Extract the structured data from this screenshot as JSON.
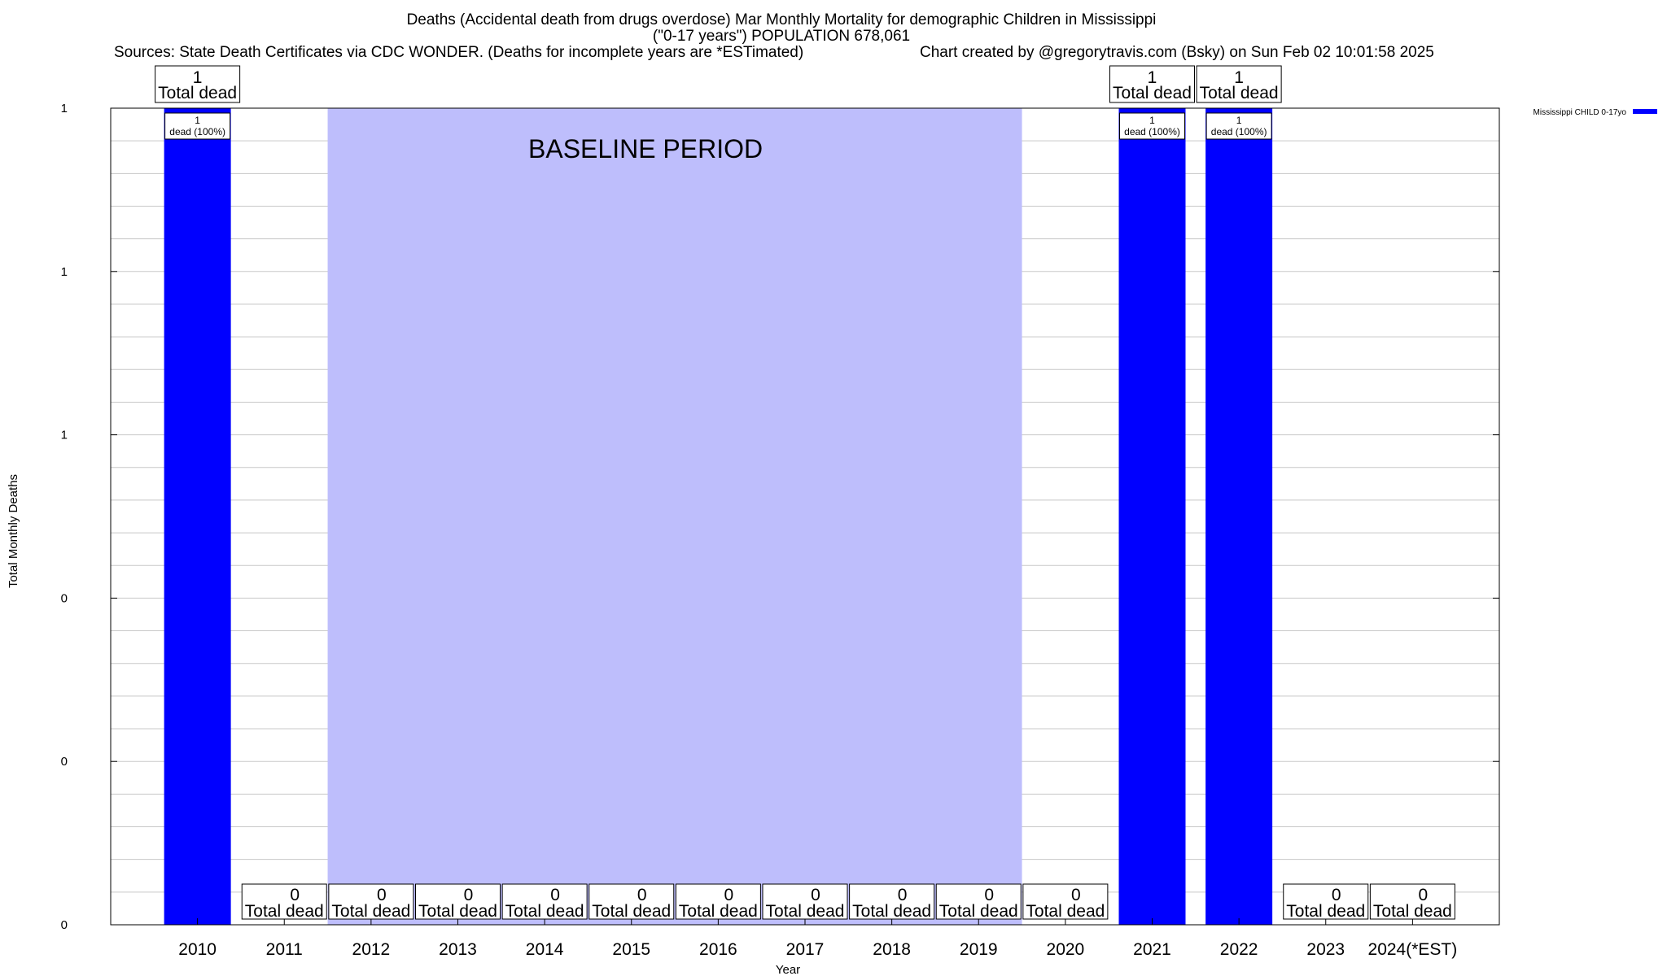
{
  "chart_data": {
    "type": "bar",
    "title_lines": [
      "Deaths (Accidental death from drugs overdose) Mar Monthly Mortality for demographic Children in Mississippi",
      "(\"0-17 years\") POPULATION 678,061"
    ],
    "sources": "Sources: State Death Certificates via CDC WONDER. (Deaths for incomplete years are *ESTimated)",
    "credit": "Chart created by @gregorytravis.com (Bsky) on Sun Feb 02 10:01:58 2025",
    "xlabel": "Year",
    "ylabel": "Total Monthly Deaths",
    "categories": [
      "2010",
      "2011",
      "2012",
      "2013",
      "2014",
      "2015",
      "2016",
      "2017",
      "2018",
      "2019",
      "2020",
      "2021",
      "2022",
      "2023",
      "2024(*EST)"
    ],
    "series": [
      {
        "name": "Mississippi CHILD 0-17yo",
        "color": "#0000ff",
        "values": [
          1,
          0,
          0,
          0,
          0,
          0,
          0,
          0,
          0,
          0,
          0,
          1,
          1,
          0,
          0
        ]
      }
    ],
    "total_label_suffix": "Total dead",
    "inner_label_suffix": "dead (100%)",
    "ylim": [
      0,
      1
    ],
    "y_tick_values": [
      0,
      0.2,
      0.4,
      0.6,
      0.8,
      1.0
    ],
    "y_tick_labels": [
      "0",
      "0",
      "0",
      "1",
      "1",
      "1"
    ],
    "grid": true,
    "baseline_period": {
      "label": "BASELINE PERIOD",
      "start_category": "2012",
      "end_category": "2019",
      "color": "#bebefc"
    },
    "legend_position": "top-right"
  }
}
